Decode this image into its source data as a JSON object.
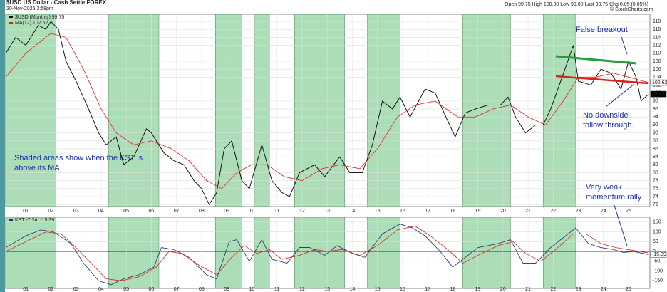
{
  "header": {
    "symbol": "$USD US Dollar - Cash Settle FOREX",
    "date": "20-Nov-2025 3:58pm",
    "quote": "Open 99.75 High 100.30 Low 99.00 Last 99.75 Chg 0.05 (0.05%)",
    "credit": "© StockCharts.com"
  },
  "annotations": [
    "Shaded areas show when the  KST is above its MA.",
    "False breakout",
    "No downside follow through.",
    "Very weak momentum rally"
  ],
  "chart_data": [
    {
      "type": "line",
      "xlim": [
        2000.2,
        2025.85
      ],
      "ylim": [
        71.5,
        119.8
      ],
      "yticks": [
        72,
        74,
        76,
        78,
        80,
        82,
        84,
        86,
        88,
        90,
        92,
        94,
        96,
        98,
        100,
        102,
        104,
        106,
        108,
        110,
        112,
        114,
        116,
        118
      ],
      "xticks": [
        {
          "value": 2001,
          "label": "01"
        },
        {
          "value": 2002,
          "label": "02"
        },
        {
          "value": 2003,
          "label": "03"
        },
        {
          "value": 2004,
          "label": "04"
        },
        {
          "value": 2005,
          "label": "05"
        },
        {
          "value": 2006,
          "label": "06"
        },
        {
          "value": 2007,
          "label": "07"
        },
        {
          "value": 2008,
          "label": "08"
        },
        {
          "value": 2009,
          "label": "09"
        },
        {
          "value": 2010,
          "label": "10"
        },
        {
          "value": 2011,
          "label": "11"
        },
        {
          "value": 2012,
          "label": "12"
        },
        {
          "value": 2013,
          "label": "13"
        },
        {
          "value": 2014,
          "label": "14"
        },
        {
          "value": 2015,
          "label": "15"
        },
        {
          "value": 2016,
          "label": "16"
        },
        {
          "value": 2017,
          "label": "17"
        },
        {
          "value": 2018,
          "label": "18"
        },
        {
          "value": 2019,
          "label": "19"
        },
        {
          "value": 2020,
          "label": "20"
        },
        {
          "value": 2021,
          "label": "21"
        },
        {
          "value": 2022,
          "label": "22"
        },
        {
          "value": 2023,
          "label": "23"
        },
        {
          "value": 2024,
          "label": "24"
        },
        {
          "value": 2025,
          "label": "25"
        }
      ],
      "shaded_ranges": [
        [
          2000.2,
          2002.2
        ],
        [
          2004.3,
          2006.3
        ],
        [
          2008.55,
          2009.6
        ],
        [
          2010.1,
          2010.7
        ],
        [
          2011.7,
          2013.7
        ],
        [
          2014.6,
          2015.9
        ],
        [
          2018.4,
          2020.3
        ],
        [
          2021.6,
          2022.9
        ]
      ],
      "shade_color": "#8fd19e",
      "series": [
        {
          "name": "$USD (Monthly) 99.75",
          "color": "#000000",
          "x": [
            2000.2,
            2000.6,
            2001.0,
            2001.5,
            2001.8,
            2002.0,
            2002.3,
            2002.6,
            2003.0,
            2003.5,
            2003.9,
            2004.2,
            2004.6,
            2004.9,
            2005.3,
            2005.8,
            2006.0,
            2006.5,
            2006.9,
            2007.3,
            2007.7,
            2008.0,
            2008.3,
            2008.6,
            2008.9,
            2009.2,
            2009.6,
            2009.9,
            2010.4,
            2010.8,
            2011.2,
            2011.5,
            2011.9,
            2012.5,
            2012.9,
            2013.5,
            2013.9,
            2014.4,
            2014.8,
            2015.2,
            2015.6,
            2015.9,
            2016.3,
            2016.9,
            2017.3,
            2017.8,
            2018.1,
            2018.5,
            2018.9,
            2019.4,
            2019.9,
            2020.2,
            2020.5,
            2020.9,
            2021.3,
            2021.6,
            2021.9,
            2022.3,
            2022.8,
            2023.0,
            2023.5,
            2023.9,
            2024.3,
            2024.7,
            2025.0,
            2025.3,
            2025.5,
            2025.8
          ],
          "values": [
            110,
            114,
            112,
            117,
            116,
            118,
            116,
            108,
            103,
            96,
            90,
            87,
            89,
            82,
            84,
            91,
            90,
            85,
            83,
            82,
            78,
            76,
            72,
            75,
            86,
            88,
            78,
            76,
            87,
            78,
            75,
            74,
            80,
            82,
            79,
            84,
            80,
            80,
            87,
            98,
            96,
            99,
            94,
            101,
            100,
            93,
            89,
            95,
            96,
            97,
            97,
            99,
            94,
            90,
            92,
            92,
            96,
            103,
            112,
            103,
            102,
            106,
            105,
            101,
            108,
            104,
            98,
            99.75
          ]
        },
        {
          "name": "MA(12) 102.62",
          "color": "#e0201b",
          "x": [
            2000.2,
            2001,
            2002,
            2002.6,
            2003.3,
            2004,
            2004.6,
            2005.3,
            2006,
            2006.8,
            2007.5,
            2008.2,
            2008.8,
            2009.4,
            2010,
            2010.6,
            2011.3,
            2012,
            2012.8,
            2013.5,
            2014.3,
            2015,
            2015.8,
            2016.5,
            2017.3,
            2018.2,
            2018.9,
            2019.6,
            2020.3,
            2021.0,
            2021.7,
            2022.4,
            2023.0,
            2023.7,
            2024.4,
            2025.0,
            2025.8
          ],
          "values": [
            104,
            110,
            115,
            114,
            106,
            96,
            90,
            87,
            88,
            86,
            83,
            78,
            76,
            80,
            82,
            82,
            79,
            78,
            81,
            82,
            81,
            86,
            94,
            97,
            98,
            94,
            94,
            96,
            97,
            94,
            92,
            98,
            104,
            104,
            105,
            104,
            102.62
          ]
        }
      ],
      "last_labels": [
        "102.62",
        "99.75"
      ]
    },
    {
      "type": "line",
      "xlim": [
        2000.2,
        2025.85
      ],
      "ylim": [
        -189,
        175
      ],
      "yticks": [
        -150,
        -100,
        -50,
        0,
        50,
        100,
        150
      ],
      "series": [
        {
          "name": "KST -7.24, -15.39",
          "color": "#1f2f6b",
          "x": [
            2000.2,
            2001,
            2001.6,
            2002.1,
            2002.8,
            2003.3,
            2003.9,
            2004.4,
            2004.9,
            2005.5,
            2006.1,
            2006.4,
            2006.9,
            2007.5,
            2008.2,
            2008.6,
            2009.1,
            2009.4,
            2009.9,
            2010.4,
            2010.8,
            2011.4,
            2011.9,
            2012.3,
            2012.9,
            2013.4,
            2014.0,
            2014.5,
            2015.2,
            2015.9,
            2016.4,
            2016.9,
            2017.5,
            2018.0,
            2018.4,
            2019.0,
            2019.8,
            2020.3,
            2020.8,
            2021.3,
            2021.9,
            2022.5,
            2022.9,
            2023.4,
            2023.9,
            2024.4,
            2024.8,
            2025.2,
            2025.8
          ],
          "values": [
            20,
            80,
            110,
            100,
            40,
            -60,
            -150,
            -170,
            -140,
            -120,
            -80,
            20,
            10,
            -30,
            -120,
            -140,
            50,
            60,
            -50,
            60,
            -40,
            -60,
            20,
            20,
            -20,
            30,
            -10,
            -30,
            90,
            140,
            120,
            80,
            0,
            -80,
            -40,
            20,
            40,
            60,
            -60,
            -60,
            20,
            80,
            120,
            40,
            20,
            10,
            -5,
            0,
            -15.39
          ]
        },
        {
          "color": "#e0201b",
          "x": [
            2000.2,
            2001,
            2001.8,
            2002.4,
            2003,
            2003.6,
            2004.2,
            2004.8,
            2005.5,
            2006.2,
            2006.7,
            2007.2,
            2007.9,
            2008.6,
            2009.2,
            2009.7,
            2010.2,
            2010.7,
            2011.2,
            2011.9,
            2012.5,
            2013.0,
            2013.6,
            2014.3,
            2015.0,
            2015.8,
            2016.5,
            2017.1,
            2017.8,
            2018.4,
            2019.0,
            2019.8,
            2020.4,
            2020.9,
            2021.5,
            2022.1,
            2022.8,
            2023.3,
            2023.9,
            2024.5,
            2025.2,
            2025.8
          ],
          "values": [
            0,
            50,
            100,
            90,
            20,
            -60,
            -140,
            -150,
            -130,
            -80,
            0,
            -10,
            -70,
            -120,
            -30,
            30,
            -10,
            10,
            -40,
            -20,
            10,
            0,
            10,
            -20,
            30,
            110,
            130,
            80,
            10,
            -60,
            -20,
            30,
            50,
            -10,
            -50,
            10,
            90,
            90,
            40,
            20,
            5,
            -7.24
          ]
        }
      ],
      "last_labels": [
        "-15.39"
      ]
    }
  ]
}
